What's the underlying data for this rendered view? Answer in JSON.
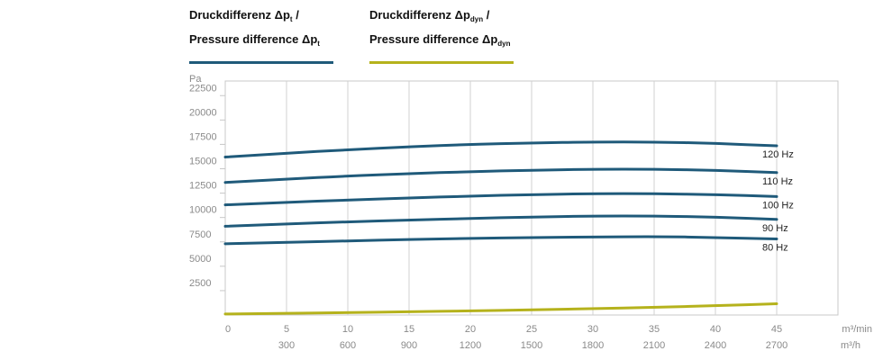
{
  "legend": {
    "pt": {
      "line1_text": "Druckdifferenz Δp",
      "line1_sub": "t",
      "line1_suffix": " /",
      "line2_text": "Pressure difference Δp",
      "line2_sub": "t",
      "color": "#1f5a7a"
    },
    "pdyn": {
      "line1_text": "Druckdifferenz Δp",
      "line1_sub": "dyn",
      "line1_suffix": " /",
      "line2_text": "Pressure difference Δp",
      "line2_sub": "dyn",
      "color": "#b5b21c"
    }
  },
  "chart_data": {
    "type": "line",
    "ylabel": "Pa",
    "xunit_primary": "m³/min",
    "xunit_secondary": "m³/h",
    "xlim": [
      0,
      50
    ],
    "ylim": [
      0,
      24000
    ],
    "yticks": [
      2500,
      5000,
      7500,
      10000,
      12500,
      15000,
      17500,
      20000,
      22500
    ],
    "ytick_labels": [
      "2500",
      "5000",
      "7500",
      "10000",
      "12500",
      "15000",
      "17500",
      "20000",
      "22500"
    ],
    "xticks": [
      0,
      5,
      10,
      15,
      20,
      25,
      30,
      35,
      40,
      45
    ],
    "xtick_labels": [
      "0",
      "5",
      "10",
      "15",
      "20",
      "25",
      "30",
      "35",
      "40",
      "45"
    ],
    "xticks_secondary": [
      5,
      10,
      15,
      20,
      25,
      30,
      35,
      40,
      45
    ],
    "xtick_labels_secondary": [
      "300",
      "600",
      "900",
      "1200",
      "1500",
      "1800",
      "2100",
      "2400",
      "2700"
    ],
    "grid": true,
    "series": [
      {
        "name": "120 Hz",
        "group": "pt",
        "x": [
          0,
          5,
          10,
          15,
          20,
          25,
          30,
          35,
          40,
          45
        ],
        "y": [
          16200,
          16600,
          16950,
          17250,
          17500,
          17650,
          17750,
          17750,
          17600,
          17350
        ]
      },
      {
        "name": "110 Hz",
        "group": "pt",
        "x": [
          0,
          5,
          10,
          15,
          20,
          25,
          30,
          35,
          40,
          45
        ],
        "y": [
          13600,
          13950,
          14250,
          14500,
          14700,
          14850,
          14950,
          14950,
          14850,
          14600
        ]
      },
      {
        "name": "100 Hz",
        "group": "pt",
        "x": [
          0,
          5,
          10,
          15,
          20,
          25,
          30,
          35,
          40,
          45
        ],
        "y": [
          11300,
          11550,
          11800,
          12000,
          12200,
          12350,
          12450,
          12450,
          12350,
          12150
        ]
      },
      {
        "name": "90 Hz",
        "group": "pt",
        "x": [
          0,
          5,
          10,
          15,
          20,
          25,
          30,
          35,
          40,
          45
        ],
        "y": [
          9100,
          9350,
          9550,
          9750,
          9900,
          10050,
          10150,
          10150,
          10050,
          9800
        ]
      },
      {
        "name": "80 Hz",
        "group": "pt",
        "x": [
          0,
          5,
          10,
          15,
          20,
          25,
          30,
          35,
          40,
          45
        ],
        "y": [
          7300,
          7450,
          7600,
          7750,
          7850,
          7950,
          8000,
          8050,
          7950,
          7800
        ]
      },
      {
        "group": "pdyn",
        "x": [
          0,
          5,
          10,
          15,
          20,
          25,
          30,
          35,
          40,
          45
        ],
        "y": [
          100,
          170,
          250,
          330,
          420,
          530,
          650,
          790,
          950,
          1150
        ]
      }
    ]
  }
}
